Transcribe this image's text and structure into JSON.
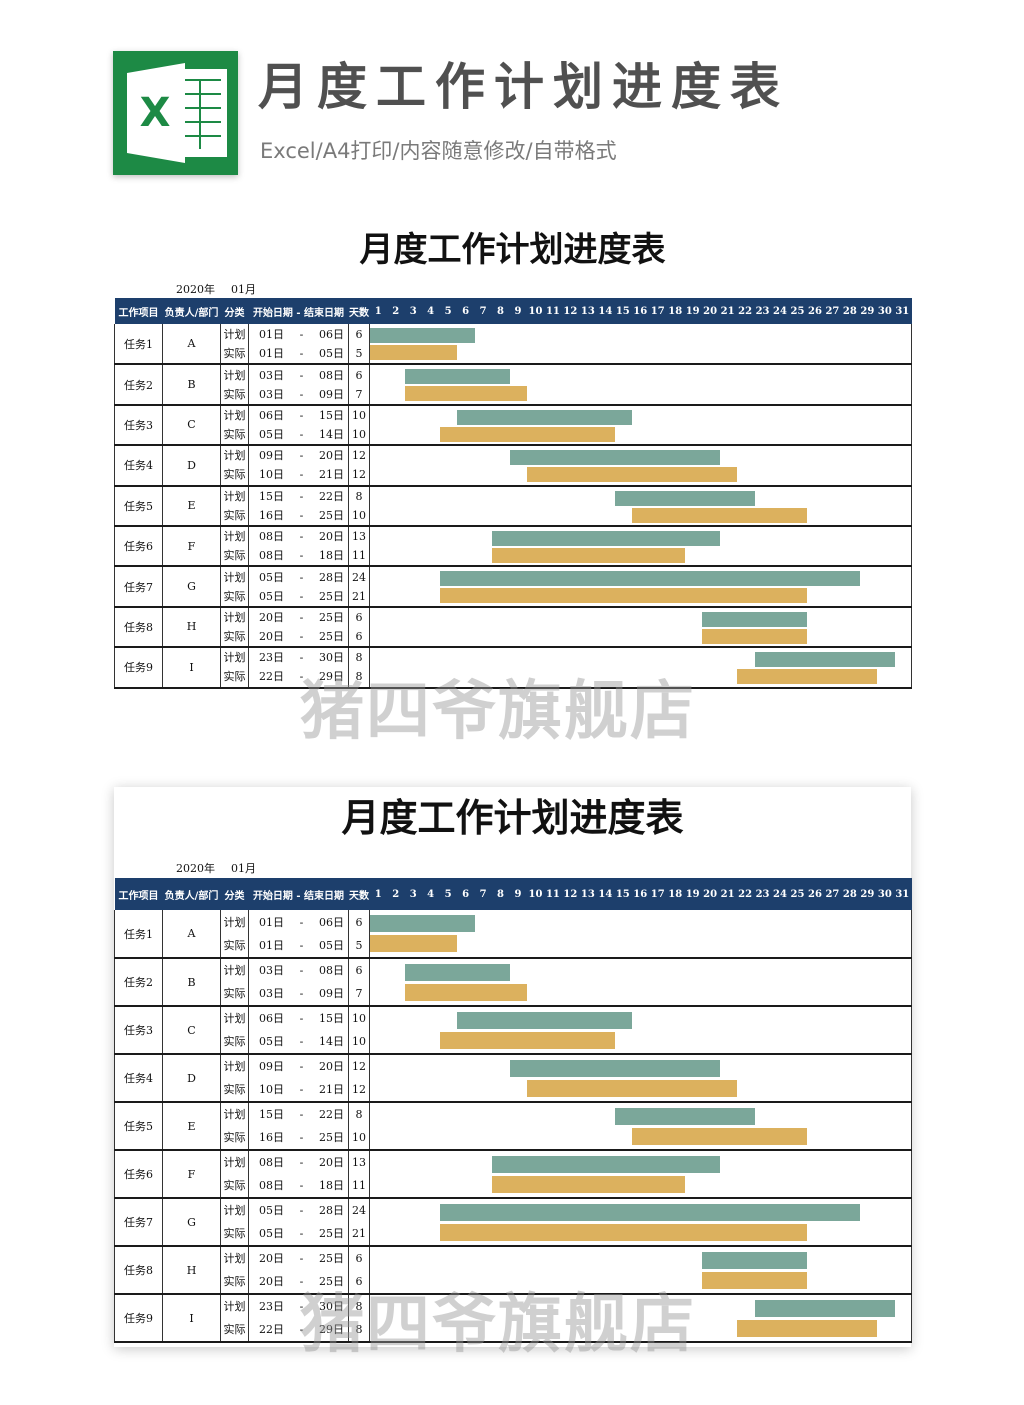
{
  "header": {
    "title": "月度工作计划进度表",
    "subtitle": "Excel/A4打印/内容随意修改/自带格式",
    "icon": "excel-icon",
    "icon_letter": "X"
  },
  "sheet": {
    "title": "月度工作计划进度表",
    "year": "2020年",
    "month": "01月",
    "columns": {
      "project": "工作项目",
      "owner": "负责人/部门",
      "kind": "分类",
      "dates": "开始日期 - 结束日期",
      "days": "天数"
    },
    "day_numbers": [
      "1",
      "2",
      "3",
      "4",
      "5",
      "6",
      "7",
      "8",
      "9",
      "10",
      "11",
      "12",
      "13",
      "14",
      "15",
      "16",
      "17",
      "18",
      "19",
      "20",
      "21",
      "22",
      "23",
      "24",
      "25",
      "26",
      "27",
      "28",
      "29",
      "30",
      "31"
    ],
    "plan_label": "计划",
    "actual_label": "实际",
    "dash": "-",
    "colors": {
      "header_bg": "#1d3f6c",
      "plan_bar": "#7ba79a",
      "actual_bar": "#dcb15e"
    },
    "tasks": [
      {
        "name": "任务1",
        "owner": "A",
        "plan": {
          "start": "01日",
          "end": "06日",
          "days": "6",
          "s": 1,
          "e": 6
        },
        "actual": {
          "start": "01日",
          "end": "05日",
          "days": "5",
          "s": 1,
          "e": 5
        }
      },
      {
        "name": "任务2",
        "owner": "B",
        "plan": {
          "start": "03日",
          "end": "08日",
          "days": "6",
          "s": 3,
          "e": 8
        },
        "actual": {
          "start": "03日",
          "end": "09日",
          "days": "7",
          "s": 3,
          "e": 9
        }
      },
      {
        "name": "任务3",
        "owner": "C",
        "plan": {
          "start": "06日",
          "end": "15日",
          "days": "10",
          "s": 6,
          "e": 15
        },
        "actual": {
          "start": "05日",
          "end": "14日",
          "days": "10",
          "s": 5,
          "e": 14
        }
      },
      {
        "name": "任务4",
        "owner": "D",
        "plan": {
          "start": "09日",
          "end": "20日",
          "days": "12",
          "s": 9,
          "e": 20
        },
        "actual": {
          "start": "10日",
          "end": "21日",
          "days": "12",
          "s": 10,
          "e": 21
        }
      },
      {
        "name": "任务5",
        "owner": "E",
        "plan": {
          "start": "15日",
          "end": "22日",
          "days": "8",
          "s": 15,
          "e": 22
        },
        "actual": {
          "start": "16日",
          "end": "25日",
          "days": "10",
          "s": 16,
          "e": 25
        }
      },
      {
        "name": "任务6",
        "owner": "F",
        "plan": {
          "start": "08日",
          "end": "20日",
          "days": "13",
          "s": 8,
          "e": 20
        },
        "actual": {
          "start": "08日",
          "end": "18日",
          "days": "11",
          "s": 8,
          "e": 18
        }
      },
      {
        "name": "任务7",
        "owner": "G",
        "plan": {
          "start": "05日",
          "end": "28日",
          "days": "24",
          "s": 5,
          "e": 28
        },
        "actual": {
          "start": "05日",
          "end": "25日",
          "days": "21",
          "s": 5,
          "e": 25
        }
      },
      {
        "name": "任务8",
        "owner": "H",
        "plan": {
          "start": "20日",
          "end": "25日",
          "days": "6",
          "s": 20,
          "e": 25
        },
        "actual": {
          "start": "20日",
          "end": "25日",
          "days": "6",
          "s": 20,
          "e": 25
        }
      },
      {
        "name": "任务9",
        "owner": "I",
        "plan": {
          "start": "23日",
          "end": "30日",
          "days": "8",
          "s": 23,
          "e": 30
        },
        "actual": {
          "start": "22日",
          "end": "29日",
          "days": "8",
          "s": 22,
          "e": 29
        }
      }
    ]
  },
  "watermark": "猪四爷旗舰店"
}
